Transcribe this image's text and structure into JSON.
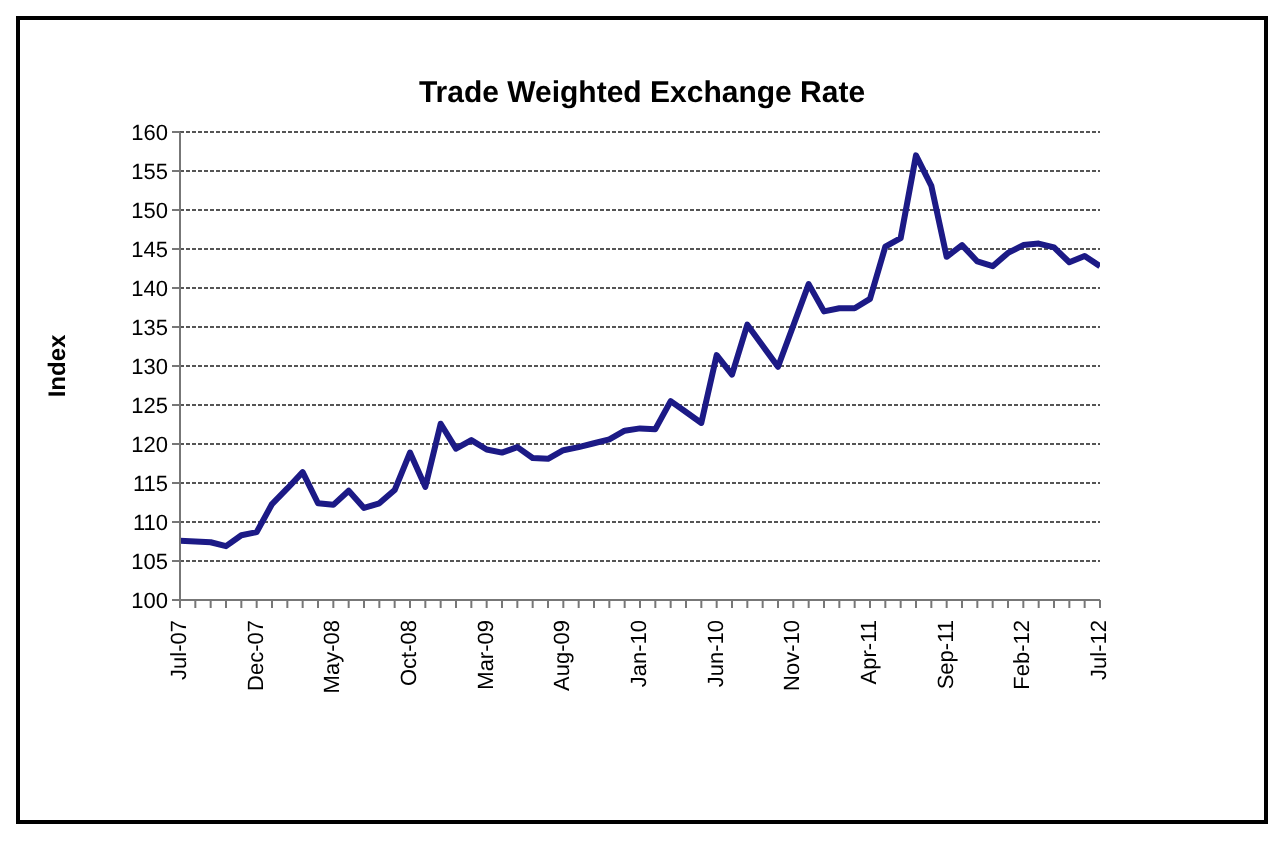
{
  "chart_data": {
    "type": "line",
    "title": "Trade Weighted Exchange Rate",
    "ylabel": "Index",
    "categories": [
      "Jul-07",
      null,
      null,
      null,
      null,
      "Dec-07",
      null,
      null,
      null,
      null,
      "May-08",
      null,
      null,
      null,
      null,
      "Oct-08",
      null,
      null,
      null,
      null,
      "Mar-09",
      null,
      null,
      null,
      null,
      "Aug-09",
      null,
      null,
      null,
      null,
      "Jan-10",
      null,
      null,
      null,
      null,
      "Jun-10",
      null,
      null,
      null,
      null,
      "Nov-10",
      null,
      null,
      null,
      null,
      "Apr-11",
      null,
      null,
      null,
      null,
      "Sep-11",
      null,
      null,
      null,
      null,
      "Feb-12",
      null,
      null,
      null,
      null,
      "Jul-12"
    ],
    "series": [
      {
        "color": "#1c1a86",
        "values": [
          107.6,
          107.5,
          107.4,
          106.9,
          108.3,
          108.7,
          112.3,
          114.3,
          116.4,
          112.4,
          112.2,
          114,
          111.8,
          112.4,
          114.1,
          118.9,
          114.5,
          122.6,
          119.4,
          120.5,
          119.3,
          118.9,
          119.6,
          118.2,
          118.1,
          119.2,
          119.6,
          120.1,
          120.6,
          121.7,
          122,
          121.9,
          125.5,
          124.1,
          122.7,
          131.4,
          128.9,
          135.3,
          132.6,
          129.9,
          135.2,
          140.5,
          137,
          137.4,
          137.4,
          138.6,
          145.3,
          146.4,
          157,
          153.1,
          144,
          145.5,
          143.4,
          142.8,
          144.5,
          145.5,
          145.7,
          145.2,
          143.3,
          144.1,
          142.8
        ]
      }
    ],
    "ylim": [
      100,
      160
    ],
    "yticks": [
      100,
      105,
      110,
      115,
      120,
      125,
      130,
      135,
      140,
      145,
      150,
      155,
      160
    ],
    "grid": "y",
    "marker": "none",
    "line_style": "solid"
  }
}
